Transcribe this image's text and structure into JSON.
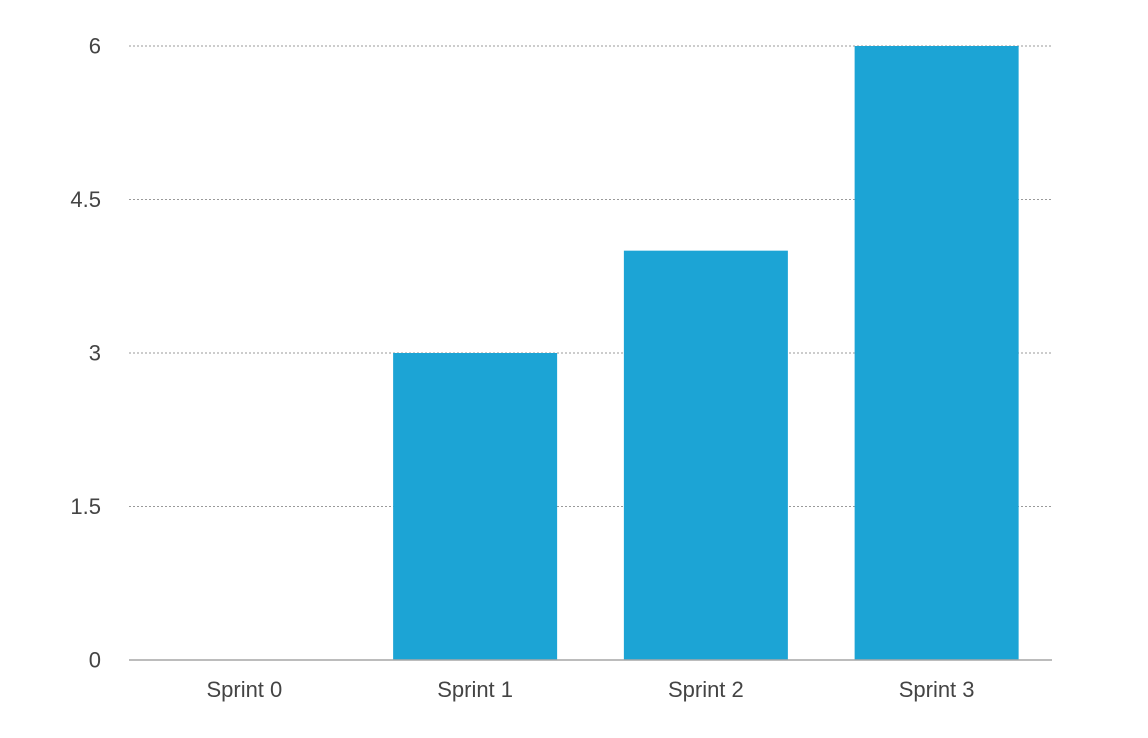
{
  "chart_data": {
    "type": "bar",
    "title": "",
    "xlabel": "",
    "ylabel": "",
    "categories": [
      "Sprint 0",
      "Sprint 1",
      "Sprint 2",
      "Sprint 3"
    ],
    "values": [
      0,
      3,
      4,
      6
    ],
    "ylim": [
      0,
      6
    ],
    "yticks": [
      0,
      1.5,
      3,
      4.5,
      6
    ],
    "ytick_labels": [
      "0",
      "1.5",
      "3",
      "4.5",
      "6"
    ],
    "grid": true,
    "legend": "none",
    "colors": {
      "bar": "#1ca4d5"
    }
  }
}
